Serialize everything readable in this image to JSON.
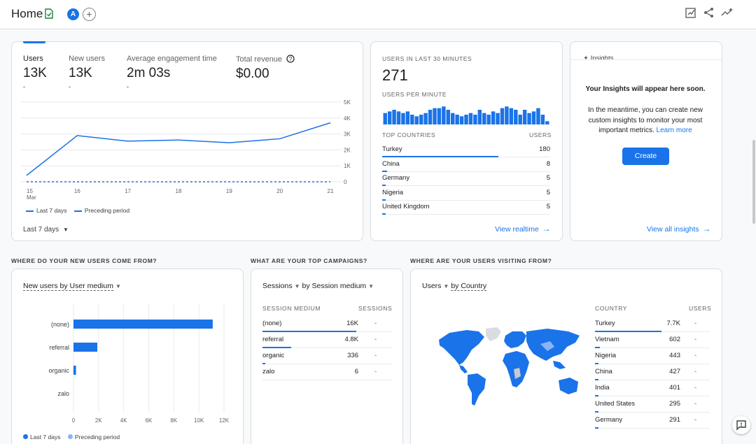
{
  "header": {
    "title": "Home",
    "avatar_letter": "A",
    "add_label": "+"
  },
  "metrics": [
    {
      "label": "Users",
      "value": "13K",
      "delta": "-"
    },
    {
      "label": "New users",
      "value": "13K",
      "delta": "-"
    },
    {
      "label": "Average engagement time",
      "value": "2m 03s",
      "delta": "-"
    },
    {
      "label": "Total revenue",
      "value": "$0.00",
      "delta": ""
    }
  ],
  "chart_data": [
    {
      "type": "line",
      "x": [
        "15 Mar",
        "16",
        "17",
        "18",
        "19",
        "20",
        "21"
      ],
      "x_tick_labels": [
        "15",
        "16",
        "17",
        "18",
        "19",
        "20",
        "21"
      ],
      "x_sub_label": "Mar",
      "y_ticks": [
        "5K",
        "4K",
        "3K",
        "2K",
        "1K",
        "0"
      ],
      "ylim": [
        0,
        5000
      ],
      "series": [
        {
          "name": "Last 7 days",
          "values": [
            400,
            2900,
            2550,
            2620,
            2450,
            2700,
            3700
          ],
          "style": "solid",
          "color": "#1a73e8"
        },
        {
          "name": "Preceding period",
          "values": [
            0,
            0,
            0,
            0,
            0,
            0,
            0
          ],
          "style": "dashed",
          "color": "#1a73e8"
        }
      ],
      "grid": true,
      "legend": "bottom-left"
    },
    {
      "type": "bar",
      "orientation": "horizontal",
      "categories": [
        "(none)",
        "referral",
        "organic",
        "zalo"
      ],
      "series": [
        {
          "name": "Last 7 days",
          "values": [
            11100,
            1900,
            200,
            0
          ],
          "color": "#1a73e8"
        },
        {
          "name": "Preceding period",
          "values": [
            0,
            0,
            0,
            0
          ],
          "color": "#8ab4f8"
        }
      ],
      "x_ticks": [
        "0",
        "2K",
        "4K",
        "6K",
        "8K",
        "10K",
        "12K"
      ],
      "xlim": [
        0,
        12000
      ],
      "grid": true,
      "legend": "bottom-left"
    }
  ],
  "main_chart": {
    "legend_current": "Last 7 days",
    "legend_previous": "Preceding period",
    "period_dropdown": "Last 7 days"
  },
  "realtime": {
    "title": "USERS IN LAST 30 MINUTES",
    "value": "271",
    "per_minute_label": "USERS PER MINUTE",
    "per_minute_bars": [
      7,
      8,
      9,
      8,
      7,
      8,
      6,
      5,
      6,
      7,
      9,
      10,
      10,
      11,
      9,
      7,
      6,
      5,
      6,
      7,
      6,
      9,
      7,
      6,
      8,
      7,
      10,
      11,
      10,
      9,
      6,
      9,
      7,
      8,
      10,
      6,
      2
    ],
    "countries_header": "TOP COUNTRIES",
    "users_header": "USERS",
    "rows": [
      {
        "name": "Turkey",
        "value": "180",
        "share": 0.69
      },
      {
        "name": "China",
        "value": "8",
        "share": 0.03
      },
      {
        "name": "Germany",
        "value": "5",
        "share": 0.02
      },
      {
        "name": "Nigeria",
        "value": "5",
        "share": 0.02
      },
      {
        "name": "United Kingdom",
        "value": "5",
        "share": 0.02
      }
    ],
    "link": "View realtime"
  },
  "insights": {
    "title": "Insights",
    "headline": "Your Insights will appear here soon.",
    "body": "In the meantime, you can create new custom insights to monitor your most important metrics.",
    "learn_more": "Learn more",
    "create_button": "Create",
    "link": "View all insights"
  },
  "sections": {
    "new_users": "WHERE DO YOUR NEW USERS COME FROM?",
    "campaigns": "WHAT ARE YOUR TOP CAMPAIGNS?",
    "visiting": "WHERE ARE YOUR USERS VISITING FROM?"
  },
  "new_users_card": {
    "dropdown": "New users by User medium",
    "legend_current": "Last 7 days",
    "legend_previous": "Preceding period"
  },
  "campaigns_card": {
    "dropdown_metric": "Sessions",
    "dropdown_dimension": "by Session medium",
    "col1": "SESSION MEDIUM",
    "col2": "SESSIONS",
    "rows": [
      {
        "name": "(none)",
        "value": "16K",
        "change": "-",
        "share": 0.96
      },
      {
        "name": "referral",
        "value": "4.8K",
        "change": "-",
        "share": 0.29
      },
      {
        "name": "organic",
        "value": "336",
        "change": "-",
        "share": 0.02
      },
      {
        "name": "zalo",
        "value": "6",
        "change": "-",
        "share": 0.0
      }
    ]
  },
  "country_card": {
    "dropdown_metric": "Users",
    "dropdown_dimension": "by Country",
    "col1": "COUNTRY",
    "col2": "USERS",
    "rows": [
      {
        "name": "Turkey",
        "value": "7.7K",
        "change": "-",
        "share": 0.58
      },
      {
        "name": "Vietnam",
        "value": "602",
        "change": "-",
        "share": 0.045
      },
      {
        "name": "Nigeria",
        "value": "443",
        "change": "-",
        "share": 0.033
      },
      {
        "name": "China",
        "value": "427",
        "change": "-",
        "share": 0.032
      },
      {
        "name": "India",
        "value": "401",
        "change": "-",
        "share": 0.03
      },
      {
        "name": "United States",
        "value": "295",
        "change": "-",
        "share": 0.022
      },
      {
        "name": "Germany",
        "value": "291",
        "change": "-",
        "share": 0.022
      }
    ]
  }
}
